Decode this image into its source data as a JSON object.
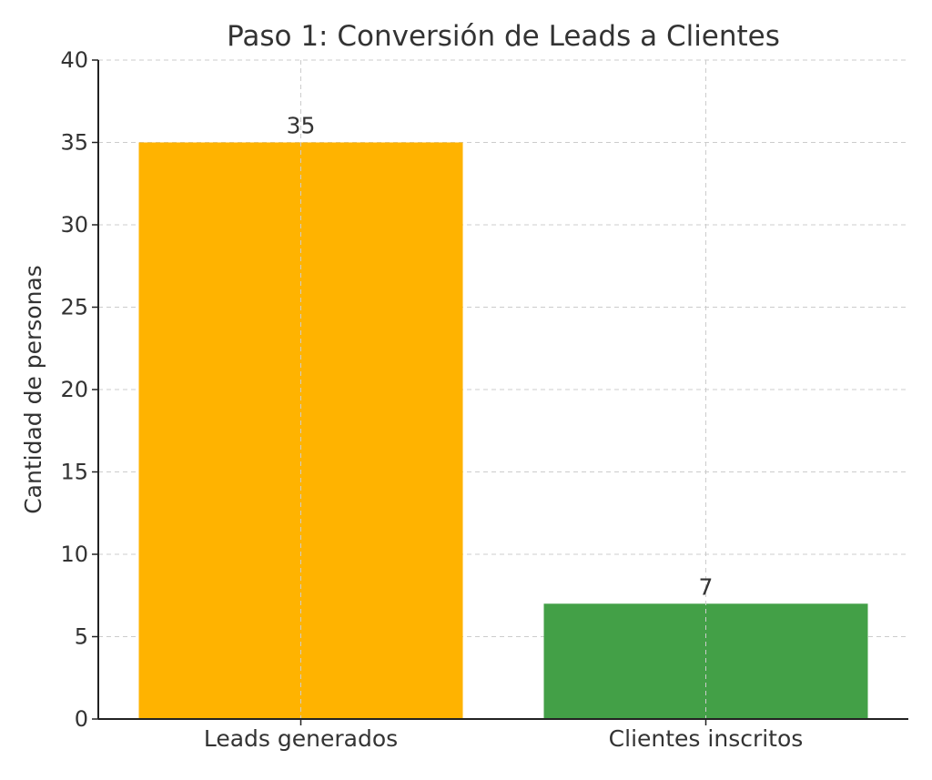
{
  "chart_data": {
    "type": "bar",
    "title": "Paso 1: Conversión de Leads a Clientes",
    "xlabel": "",
    "ylabel": "Cantidad de personas",
    "categories": [
      "Leads generados",
      "Clientes inscritos"
    ],
    "values": [
      35,
      7
    ],
    "colors": [
      "#FFB300",
      "#43A047"
    ],
    "ylim": [
      0,
      40
    ],
    "yticks": [
      0,
      5,
      10,
      15,
      20,
      25,
      30,
      35,
      40
    ],
    "data_labels": [
      "35",
      "7"
    ],
    "grid": true
  }
}
